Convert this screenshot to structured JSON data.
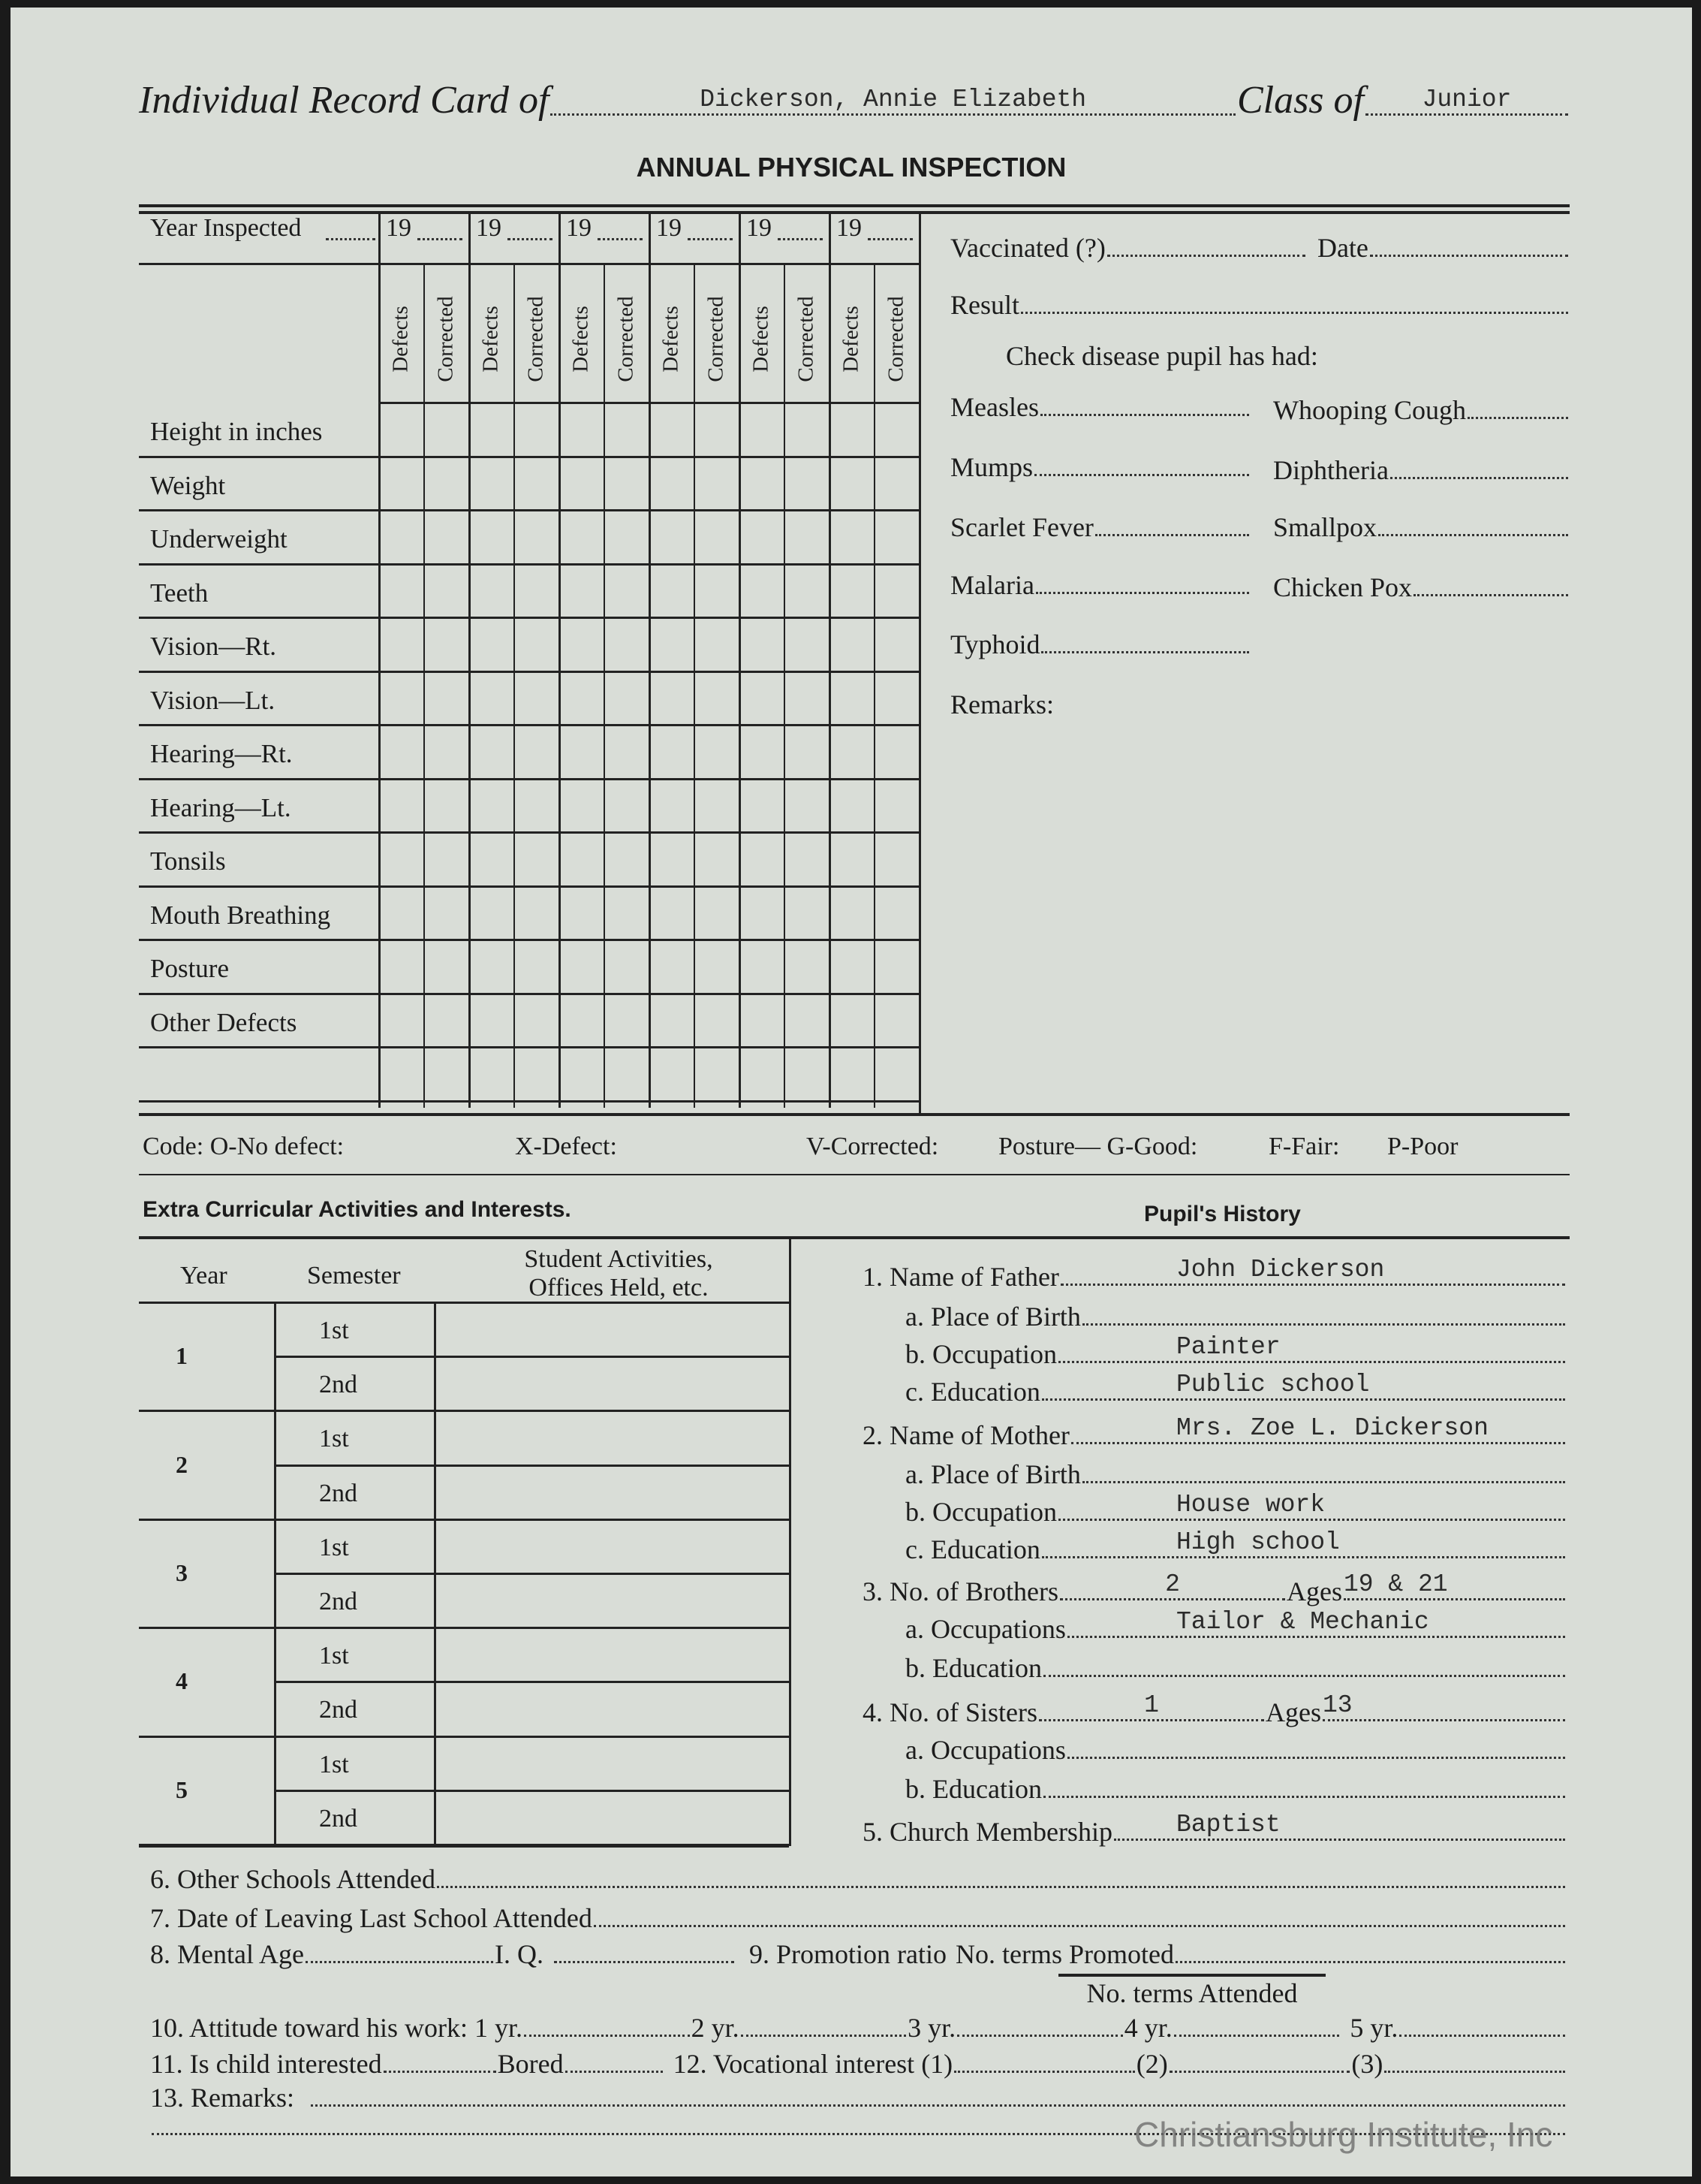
{
  "header": {
    "title_prefix": "Individual Record Card of",
    "student_name": "Dickerson, Annie Elizabeth",
    "class_label": "Class of",
    "class_value": "Junior",
    "subtitle": "ANNUAL PHYSICAL INSPECTION"
  },
  "physical": {
    "year_label": "Year Inspected",
    "years": [
      "19",
      "19",
      "19",
      "19",
      "19",
      "19"
    ],
    "sub_headers": [
      "Defects",
      "Corrected"
    ],
    "rows": [
      "Height in inches",
      "Weight",
      "Underweight",
      "Teeth",
      "Vision—Rt.",
      "Vision—Lt.",
      "Hearing—Rt.",
      "Hearing—Lt.",
      "Tonsils",
      "Mouth Breathing",
      "Posture",
      "Other Defects"
    ]
  },
  "code_line": [
    "Code: O-No defect:",
    "X-Defect:",
    "V-Corrected:",
    "Posture— G-Good:",
    "F-Fair:",
    "P-Poor"
  ],
  "vaccination": {
    "vaccinated": "Vaccinated (?)",
    "date": "Date",
    "result": "Result",
    "check_heading": "Check disease pupil has had:",
    "diseases_left": [
      "Measles",
      "Mumps",
      "Scarlet Fever",
      "Malaria",
      "Typhoid"
    ],
    "diseases_right": [
      "Whooping Cough",
      "Diphtheria",
      "Smallpox",
      "Chicken Pox"
    ],
    "remarks": "Remarks:"
  },
  "activities": {
    "title": "Extra Curricular Activities and Interests.",
    "headers": [
      "Year",
      "Semester",
      "Student Activities,",
      "Offices Held, etc."
    ],
    "years": [
      "1",
      "2",
      "3",
      "4",
      "5"
    ],
    "semesters": [
      "1st",
      "2nd"
    ]
  },
  "history": {
    "title": "Pupil's History",
    "father": {
      "label": "1.  Name of Father",
      "value": "John Dickerson"
    },
    "father_birth": {
      "label": "a. Place of Birth",
      "value": ""
    },
    "father_occupation": {
      "label": "b. Occupation",
      "value": "Painter"
    },
    "father_education": {
      "label": "c. Education",
      "value": "Public school"
    },
    "mother": {
      "label": "2.  Name of Mother",
      "value": "Mrs. Zoe L. Dickerson"
    },
    "mother_birth": {
      "label": "a. Place of Birth",
      "value": ""
    },
    "mother_occupation": {
      "label": "b. Occupation",
      "value": "House work"
    },
    "mother_education": {
      "label": "c. Education",
      "value": "High school"
    },
    "brothers": {
      "label": "3.  No. of Brothers",
      "value": "2",
      "ages_label": "Ages",
      "ages": "19 & 21"
    },
    "brothers_occupations": {
      "label": "a. Occupations",
      "value": "Tailor & Mechanic"
    },
    "brothers_education": {
      "label": "b. Education",
      "value": ""
    },
    "sisters": {
      "label": "4.  No. of Sisters",
      "value": "1",
      "ages_label": "Ages",
      "ages": "13"
    },
    "sisters_occupations": {
      "label": "a. Occupations",
      "value": ""
    },
    "sisters_education": {
      "label": "b. Education",
      "value": ""
    },
    "church": {
      "label": "5.  Church Membership",
      "value": "Baptist"
    }
  },
  "bottom": {
    "other_schools": "6.  Other Schools Attended",
    "date_leaving": "7.  Date of Leaving Last School Attended",
    "mental_age": "8.  Mental Age",
    "iq": "I. Q.",
    "promotion": "9.  Promotion ratio",
    "promoted": "No. terms Promoted",
    "attended": "No. terms Attended",
    "attitude": "10.  Attitude toward his work: 1 yr.",
    "yr2": "2 yr.",
    "yr3": "3 yr.",
    "yr4": "4 yr.",
    "yr5": "5 yr.",
    "interested": "11.  Is child interested",
    "bored": "Bored",
    "vocational": "12.  Vocational interest  (1)",
    "voc2": "(2)",
    "voc3": "(3)",
    "remarks": "13.  Remarks:"
  },
  "watermark": "Christiansburg Institute, Inc",
  "colors": {
    "paper": "#d9ddd7",
    "ink": "#1c1c1c",
    "border": "#1a1a1a",
    "watermark": "#6e6e6e"
  }
}
